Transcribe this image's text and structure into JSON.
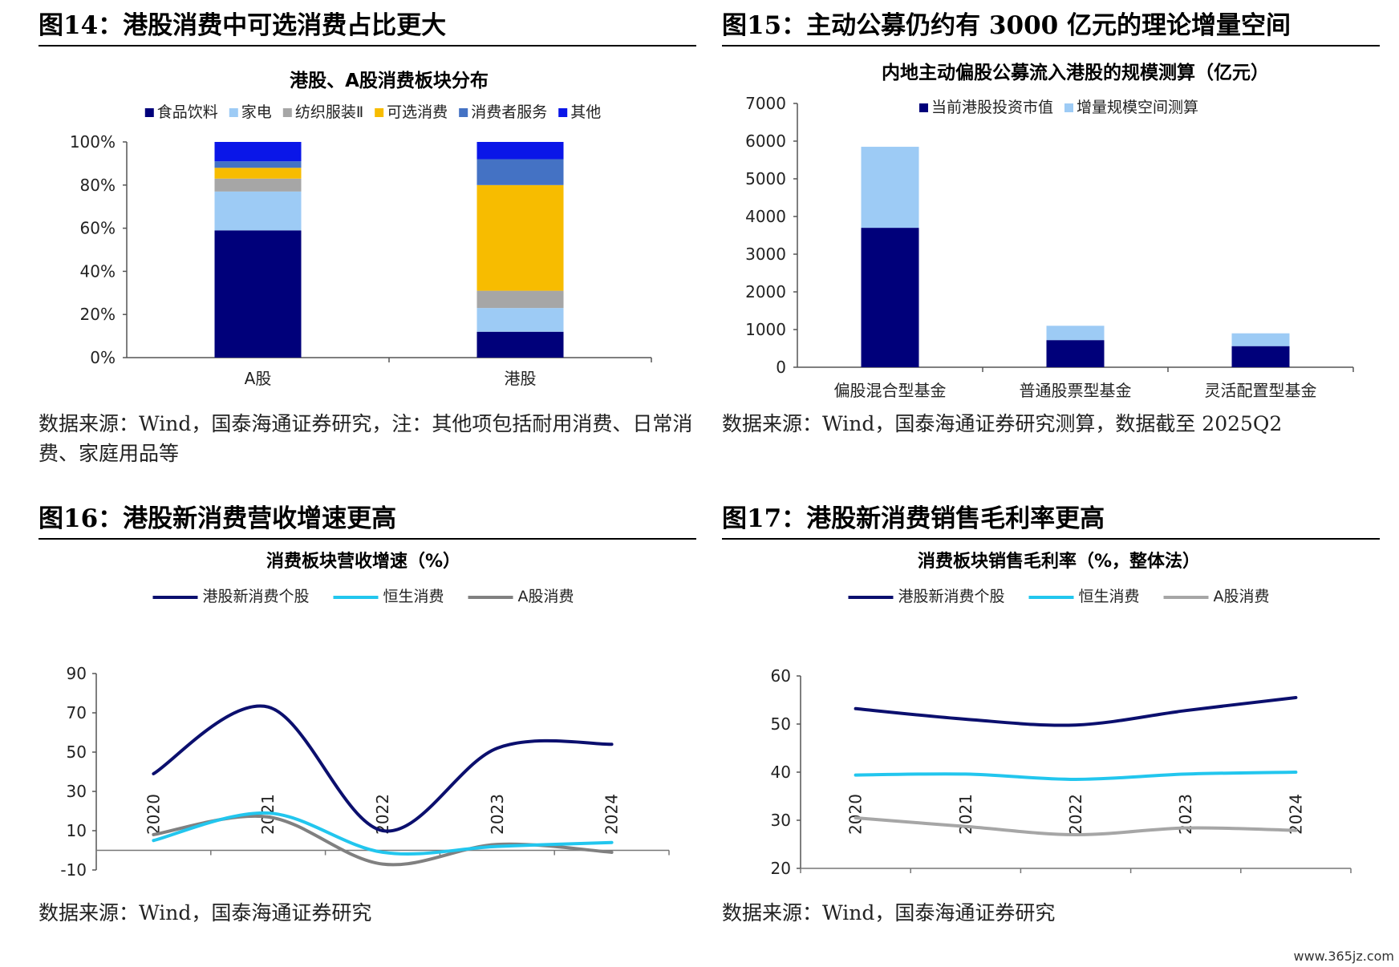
{
  "figures": [
    {
      "fig_title": "图14：港股消费中可选消费占比更大",
      "source": "数据来源：Wind，国泰海通证券研究，注：其他项包括耐用消费、日常消费、家庭用品等",
      "chart_data": {
        "type": "bar",
        "stacked": true,
        "title": "港股、A股消费板块分布",
        "categories": [
          "A股",
          "港股"
        ],
        "yticks": [
          "0%",
          "20%",
          "40%",
          "60%",
          "80%",
          "100%"
        ],
        "ylim": [
          0,
          100
        ],
        "legend_position": "top",
        "series": [
          {
            "name": "食品饮料",
            "color": "#00007A",
            "values": [
              59,
              12
            ]
          },
          {
            "name": "家电",
            "color": "#9DCBF5",
            "values": [
              18,
              11
            ]
          },
          {
            "name": "纺织服装Ⅱ",
            "color": "#A6A6A6",
            "values": [
              6,
              8
            ]
          },
          {
            "name": "可选消费",
            "color": "#F7BC00",
            "values": [
              5,
              49
            ]
          },
          {
            "name": "消费者服务",
            "color": "#4472C4",
            "values": [
              3,
              12
            ]
          },
          {
            "name": "其他",
            "color": "#0A16E8",
            "values": [
              9,
              8
            ]
          }
        ]
      }
    },
    {
      "fig_title": "图15：主动公募仍约有 3000 亿元的理论增量空间",
      "source": "数据来源：Wind，国泰海通证券研究测算，数据截至 2025Q2",
      "chart_data": {
        "type": "bar",
        "stacked": true,
        "title": "内地主动偏股公募流入港股的规模测算（亿元）",
        "categories": [
          "偏股混合型基金",
          "普通股票型基金",
          "灵活配置型基金"
        ],
        "yticks": [
          "0",
          "1000",
          "2000",
          "3000",
          "4000",
          "5000",
          "6000",
          "7000"
        ],
        "ylim": [
          0,
          7000
        ],
        "legend_position": "top",
        "series": [
          {
            "name": "当前港股投资市值",
            "color": "#00007A",
            "values": [
              3700,
              720,
              560
            ]
          },
          {
            "name": "增量规模空间测算",
            "color": "#9DCBF5",
            "values": [
              2150,
              380,
              340
            ]
          }
        ]
      }
    },
    {
      "fig_title": "图16：港股新消费营收增速更高",
      "source": "数据来源：Wind，国泰海通证券研究",
      "chart_data": {
        "type": "line",
        "title": "消费板块营收增速（%）",
        "x": [
          "2020",
          "2021",
          "2022",
          "2023",
          "2024"
        ],
        "yticks": [
          "-10",
          "10",
          "30",
          "50",
          "70",
          "90"
        ],
        "ylim": [
          -10,
          90
        ],
        "legend_position": "top",
        "series": [
          {
            "name": "港股新消费个股",
            "color": "#0B0F6E",
            "values": [
              39,
              73,
              10,
              52,
              54
            ]
          },
          {
            "name": "恒生消费",
            "color": "#22C6EE",
            "values": [
              5,
              19,
              -1,
              2,
              4
            ]
          },
          {
            "name": "A股消费",
            "color": "#808080",
            "values": [
              8,
              17,
              -7,
              3,
              -1
            ]
          }
        ]
      }
    },
    {
      "fig_title": "图17：港股新消费销售毛利率更高",
      "source": "数据来源：Wind，国泰海通证券研究",
      "chart_data": {
        "type": "line",
        "title": "消费板块销售毛利率（%，整体法）",
        "x": [
          "2020",
          "2021",
          "2022",
          "2023",
          "2024"
        ],
        "yticks": [
          "20",
          "30",
          "40",
          "50",
          "60"
        ],
        "ylim": [
          20,
          60
        ],
        "legend_position": "top",
        "series": [
          {
            "name": "港股新消费个股",
            "color": "#0B0F6E",
            "values": [
              53.2,
              51,
              49.8,
              52.8,
              55.5
            ]
          },
          {
            "name": "恒生消费",
            "color": "#22C6EE",
            "values": [
              39.4,
              39.6,
              38.5,
              39.6,
              40
            ]
          },
          {
            "name": "A股消费",
            "color": "#A6A6A6",
            "values": [
              30.5,
              28.7,
              27,
              28.4,
              27.9
            ]
          }
        ]
      }
    }
  ],
  "watermark": "www.365jz.com"
}
